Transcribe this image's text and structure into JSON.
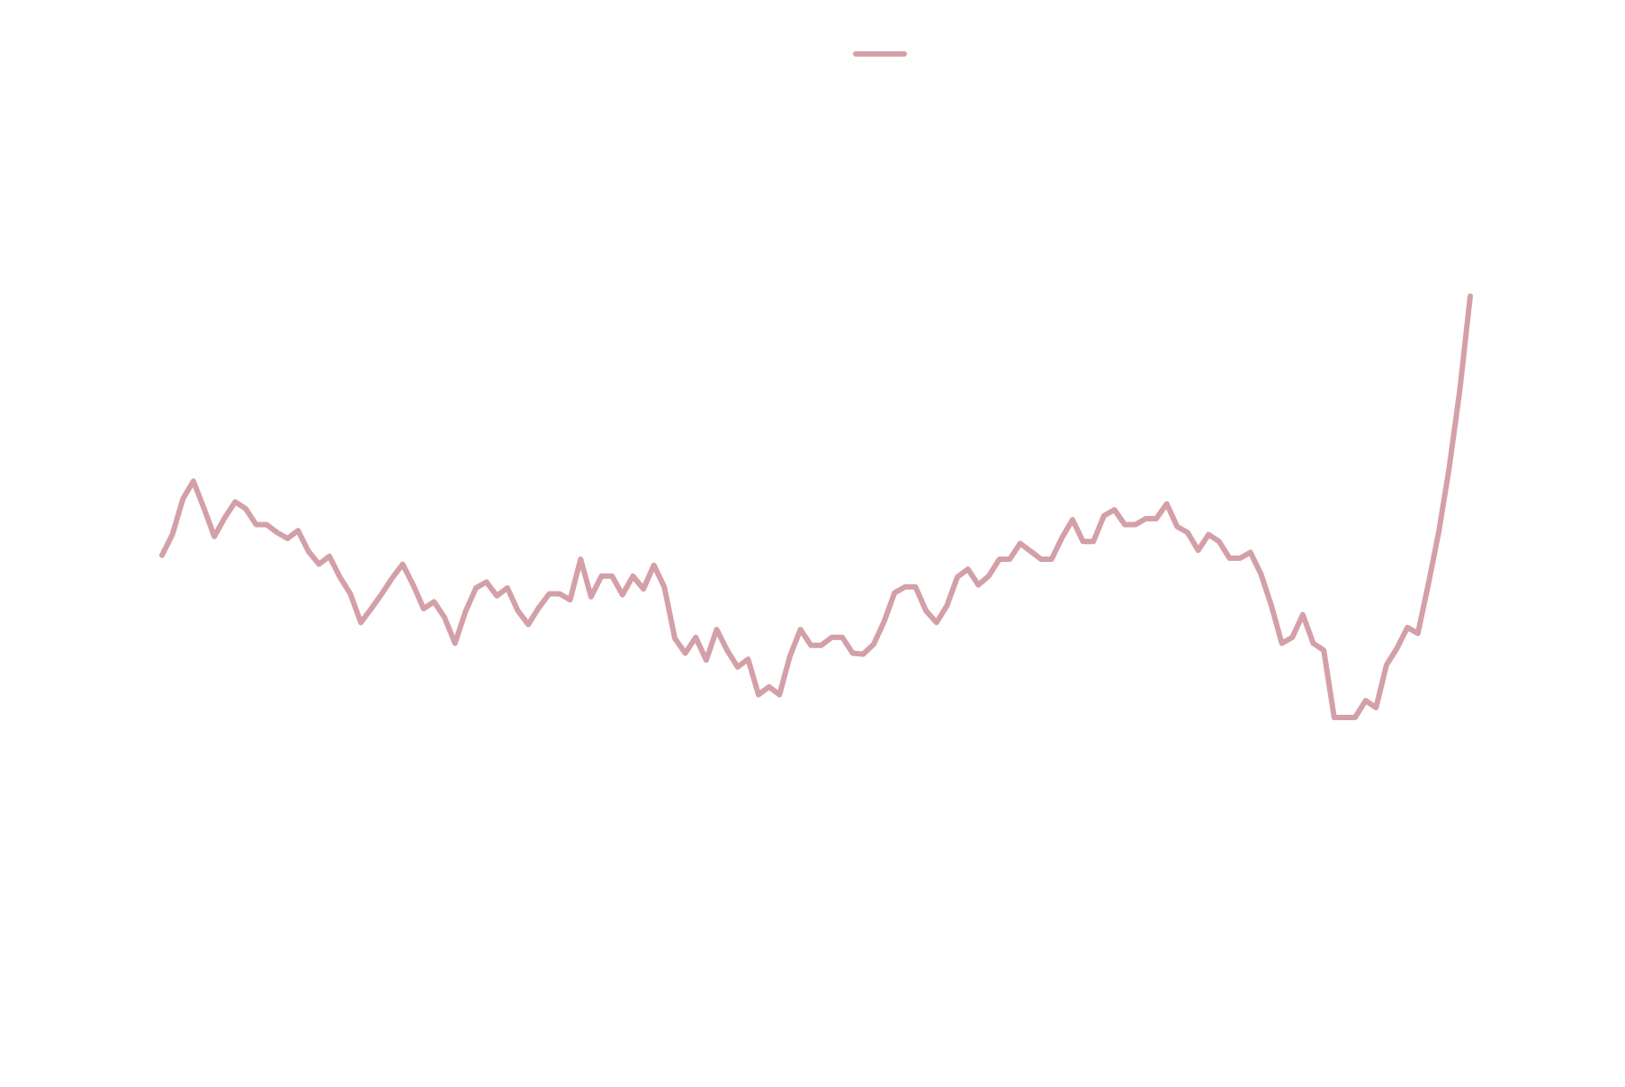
{
  "chart_data": {
    "type": "line",
    "title": "",
    "xlabel": "",
    "ylabel": "",
    "grid": false,
    "legend": {
      "placement": "top-center",
      "entries": [
        ""
      ]
    },
    "axes_visible": false,
    "ylim": [
      0,
      100
    ],
    "series": [
      {
        "name": "",
        "color": "#d4a0a8",
        "x": [
          0,
          1,
          2,
          3,
          4,
          5,
          6,
          7,
          8,
          9,
          10,
          11,
          12,
          13,
          14,
          15,
          16,
          17,
          18,
          19,
          20,
          21,
          22,
          23,
          24,
          25,
          26,
          27,
          28,
          29,
          30,
          31,
          32,
          33,
          34,
          35,
          36,
          37,
          38,
          39,
          40,
          41,
          42,
          43,
          44,
          45,
          46,
          47,
          48,
          49,
          50,
          51,
          52,
          53,
          54,
          55,
          56,
          57,
          58,
          59,
          60,
          61,
          62,
          63,
          64,
          65,
          66,
          67,
          68,
          69,
          70,
          71,
          72,
          73,
          74,
          75,
          76,
          77,
          78,
          79,
          80,
          81,
          82,
          83,
          84,
          85,
          86,
          87,
          88,
          89,
          90,
          91,
          92,
          93,
          94,
          95,
          96,
          97,
          98,
          99,
          100,
          101,
          102,
          103,
          104,
          105,
          106,
          107,
          108,
          109,
          110,
          111,
          112,
          113,
          114,
          115,
          116,
          117,
          118,
          119,
          120,
          121,
          122,
          123,
          124,
          125
        ],
        "y": [
          48.4,
          50.5,
          54.1,
          55.9,
          53.2,
          50.3,
          52.2,
          53.8,
          53.1,
          51.5,
          51.5,
          50.7,
          50.1,
          50.9,
          48.8,
          47.5,
          48.3,
          46.2,
          44.5,
          41.6,
          43.0,
          44.5,
          46.1,
          47.5,
          45.4,
          43.0,
          43.7,
          42.1,
          39.5,
          42.7,
          45.1,
          45.7,
          44.3,
          45.1,
          42.8,
          41.4,
          43.1,
          44.5,
          44.5,
          43.9,
          48.0,
          44.2,
          46.3,
          46.3,
          44.4,
          46.3,
          45.0,
          47.4,
          45.2,
          40.0,
          38.5,
          40.1,
          37.8,
          40.9,
          38.8,
          37.1,
          37.9,
          34.3,
          35.1,
          34.3,
          38.2,
          40.9,
          39.3,
          39.3,
          40.1,
          40.1,
          38.5,
          38.4,
          39.4,
          41.7,
          44.6,
          45.2,
          45.2,
          42.8,
          41.6,
          43.3,
          46.2,
          47.0,
          45.4,
          46.3,
          48.0,
          48.0,
          49.6,
          48.8,
          48.0,
          48.0,
          50.2,
          52.0,
          49.8,
          49.8,
          52.4,
          53.0,
          51.5,
          51.5,
          52.1,
          52.1,
          53.6,
          51.3,
          50.7,
          48.9,
          50.5,
          49.8,
          48.1,
          48.1,
          48.7,
          46.5,
          43.3,
          39.5,
          40.1,
          42.4,
          39.5,
          38.8,
          32.0,
          32.0,
          32.0,
          33.7,
          33.0,
          37.3,
          39.0,
          41.1,
          40.5,
          45.5,
          50.8,
          57.3,
          65.1,
          74.6
        ]
      }
    ]
  }
}
